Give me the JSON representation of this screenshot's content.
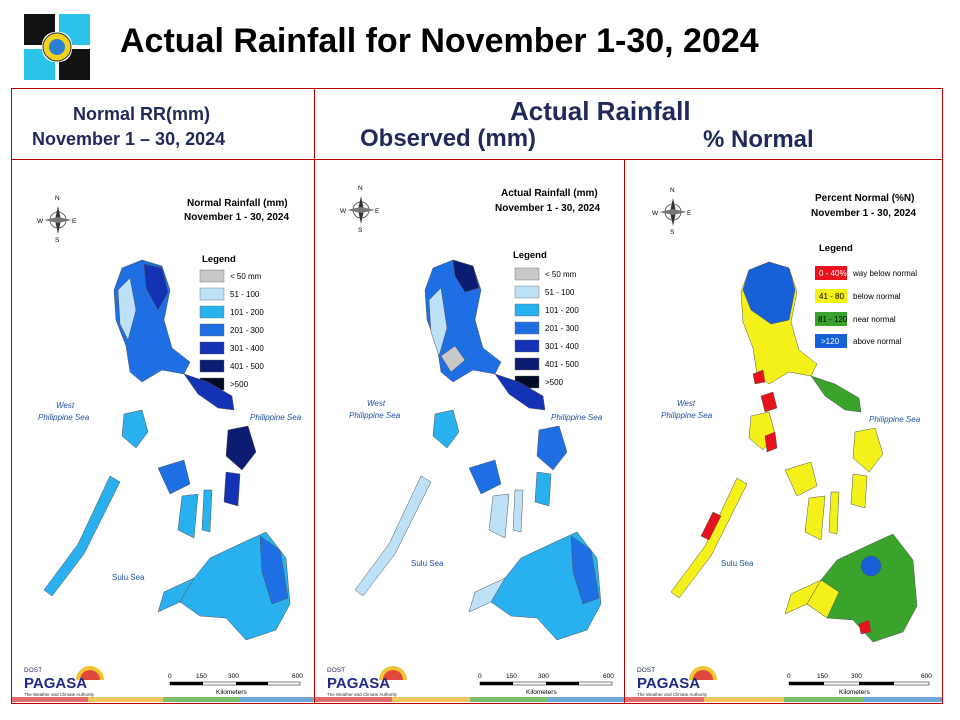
{
  "title": "Actual Rainfall for November 1-30, 2024",
  "headers": {
    "normal_line1": "Normal RR(mm)",
    "normal_line2": "November 1 – 30, 2024",
    "actual": "Actual Rainfall",
    "observed": "Observed (mm)",
    "percent": "% Normal"
  },
  "panels": [
    {
      "map_title": "Normal Rainfall (mm)",
      "map_subtitle": "November 1 - 30, 2024",
      "legend_title": "Legend",
      "legend": [
        {
          "label": "< 50 mm",
          "color": "#c8c8c8"
        },
        {
          "label": "51 - 100",
          "color": "#bde2f7"
        },
        {
          "label": "101 - 200",
          "color": "#29b0ee"
        },
        {
          "label": "201 - 300",
          "color": "#1d6fe3"
        },
        {
          "label": "301 - 400",
          "color": "#1432b4"
        },
        {
          "label": "401 - 500",
          "color": "#0b1c72"
        },
        {
          "label": ">500",
          "color": "#050a26"
        }
      ]
    },
    {
      "map_title": "Actual Rainfall (mm)",
      "map_subtitle": "November 1 - 30, 2024",
      "legend_title": "Legend",
      "legend": [
        {
          "label": "< 50 mm",
          "color": "#c8c8c8"
        },
        {
          "label": "51 - 100",
          "color": "#bde2f7"
        },
        {
          "label": "101 - 200",
          "color": "#29b0ee"
        },
        {
          "label": "201 - 300",
          "color": "#1d6fe3"
        },
        {
          "label": "301 - 400",
          "color": "#1432b4"
        },
        {
          "label": "401 - 500",
          "color": "#0b1c72"
        },
        {
          "label": ">500",
          "color": "#050a26"
        }
      ]
    },
    {
      "map_title": "Percent Normal (%N)",
      "map_subtitle": "November 1 - 30, 2024",
      "legend_title": "Legend",
      "legend": [
        {
          "label": "way below normal",
          "range": "0 - 40%",
          "color": "#e8121c",
          "text_color": "#ffffff"
        },
        {
          "label": "below normal",
          "range": "41 - 80",
          "color": "#f4f01a",
          "text_color": "#000000"
        },
        {
          "label": "near normal",
          "range": "81 - 120",
          "color": "#3aa32c",
          "text_color": "#000000"
        },
        {
          "label": "above normal",
          "range": ">120",
          "color": "#1660d8",
          "text_color": "#ffffff"
        }
      ]
    }
  ],
  "sea_labels": {
    "west1": "West",
    "west2": "Philippine Sea",
    "east": "Philippine Sea",
    "sulu": "Sulu Sea"
  },
  "compass": {
    "n": "N",
    "s": "S",
    "e": "E",
    "w": "W"
  },
  "scale": {
    "ticks": [
      "0",
      "150",
      "300",
      "600"
    ],
    "unit": "Kilometers"
  },
  "branding": {
    "dost": "DOST",
    "name": "PAGASA",
    "tagline": "The Weather and Climate Authority"
  },
  "footer_colors": [
    "#e46b6b",
    "#f0c75e",
    "#7cbf6a",
    "#6fa7d8"
  ]
}
